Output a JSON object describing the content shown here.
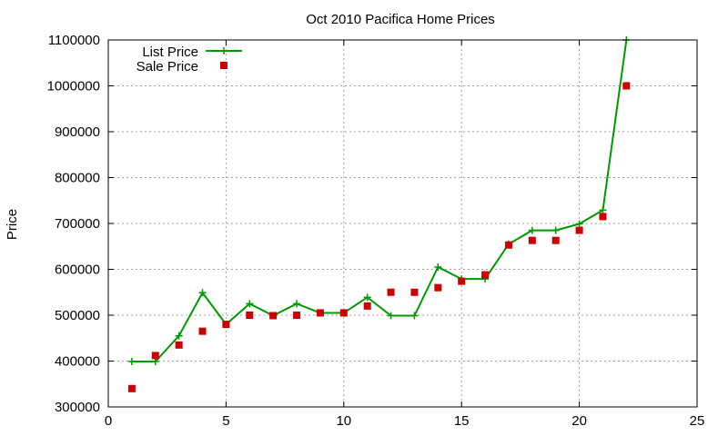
{
  "chart_data": {
    "type": "line",
    "title": "Oct 2010 Pacifica Home Prices",
    "xlabel": "",
    "ylabel": "Price",
    "xlim": [
      0,
      25
    ],
    "ylim": [
      300000,
      1100000
    ],
    "xticks": [
      0,
      5,
      10,
      15,
      20,
      25
    ],
    "yticks": [
      300000,
      400000,
      500000,
      600000,
      700000,
      800000,
      900000,
      1000000,
      1100000
    ],
    "grid": true,
    "legend_position": "top-left",
    "series": [
      {
        "name": "List Price",
        "style": "line-plus",
        "color": "#009900",
        "x": [
          1,
          2,
          3,
          4,
          5,
          6,
          7,
          8,
          9,
          10,
          11,
          12,
          13,
          14,
          15,
          16,
          17,
          18,
          19,
          20,
          21,
          22
        ],
        "y": [
          399000,
          399000,
          455000,
          549000,
          480000,
          525000,
          499000,
          525000,
          505000,
          505000,
          539000,
          499000,
          499000,
          605000,
          579000,
          579000,
          655000,
          685000,
          685000,
          699000,
          729000,
          1100000
        ]
      },
      {
        "name": "Sale Price",
        "style": "square-points",
        "color": "#cc0000",
        "x": [
          1,
          2,
          3,
          4,
          5,
          6,
          7,
          8,
          9,
          10,
          11,
          12,
          13,
          14,
          15,
          16,
          17,
          18,
          19,
          20,
          21,
          22
        ],
        "y": [
          340000,
          412000,
          435000,
          465000,
          480000,
          500000,
          499000,
          500000,
          505000,
          505000,
          520000,
          550000,
          550000,
          560000,
          574000,
          588000,
          653000,
          663000,
          663000,
          685000,
          715000,
          1000000
        ]
      }
    ]
  }
}
